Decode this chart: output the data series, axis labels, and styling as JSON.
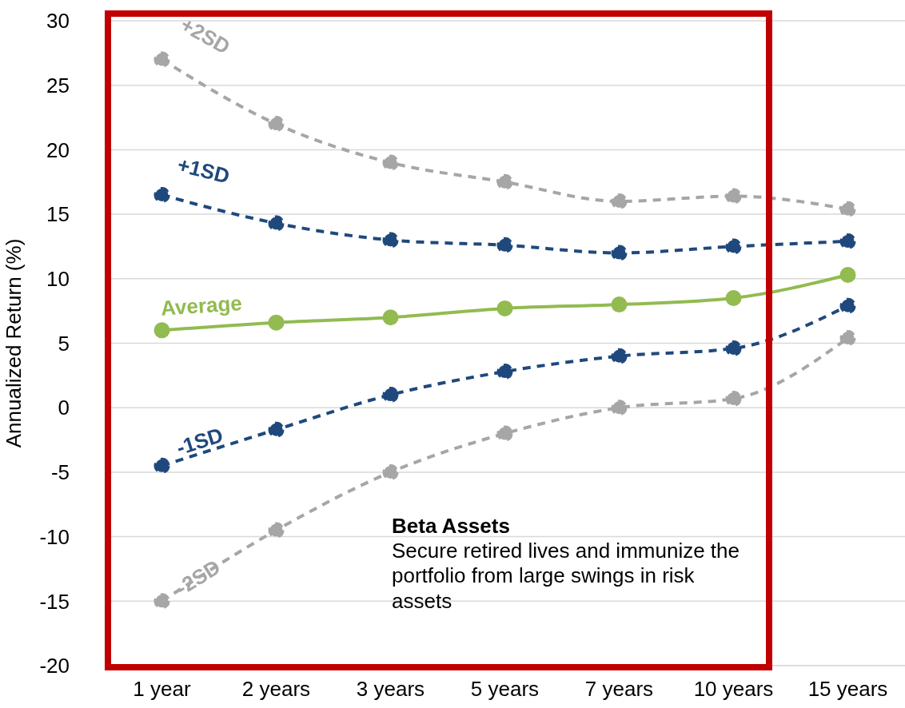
{
  "chart_data": {
    "type": "line",
    "ylabel": "Annualized Return (%)",
    "categories": [
      "1 year",
      "2 years",
      "3 years",
      "5 years",
      "7 years",
      "10 years",
      "15 years"
    ],
    "series": [
      {
        "name": "+2SD",
        "color": "#a6a6a6",
        "line_style": "dashed",
        "values": [
          27,
          22,
          19,
          17.5,
          16,
          16.4,
          15.4
        ]
      },
      {
        "name": "+1SD",
        "color": "#1f497d",
        "line_style": "dashed",
        "values": [
          16.5,
          14.3,
          13,
          12.6,
          12,
          12.5,
          12.9
        ]
      },
      {
        "name": "Average",
        "color": "#92bb50",
        "line_style": "solid",
        "values": [
          6,
          6.6,
          7,
          7.7,
          8,
          8.5,
          10.3
        ]
      },
      {
        "name": "-1SD",
        "color": "#1f497d",
        "line_style": "dashed",
        "values": [
          -4.5,
          -1.7,
          1,
          2.8,
          4,
          4.6,
          7.9
        ]
      },
      {
        "name": "-2SD",
        "color": "#a6a6a6",
        "line_style": "dashed",
        "values": [
          -15,
          -9.5,
          -5,
          -2,
          0,
          0.7,
          5.4
        ]
      }
    ],
    "ylim": [
      -20,
      30
    ],
    "yticks": [
      -20,
      -15,
      -10,
      -5,
      0,
      5,
      10,
      15,
      20,
      25,
      30
    ],
    "grid": "y",
    "marker": "circle",
    "legend": false,
    "annotations": [
      "Beta Assets",
      "Secure retired lives and immunize the portfolio from large swings in risk assets"
    ]
  }
}
